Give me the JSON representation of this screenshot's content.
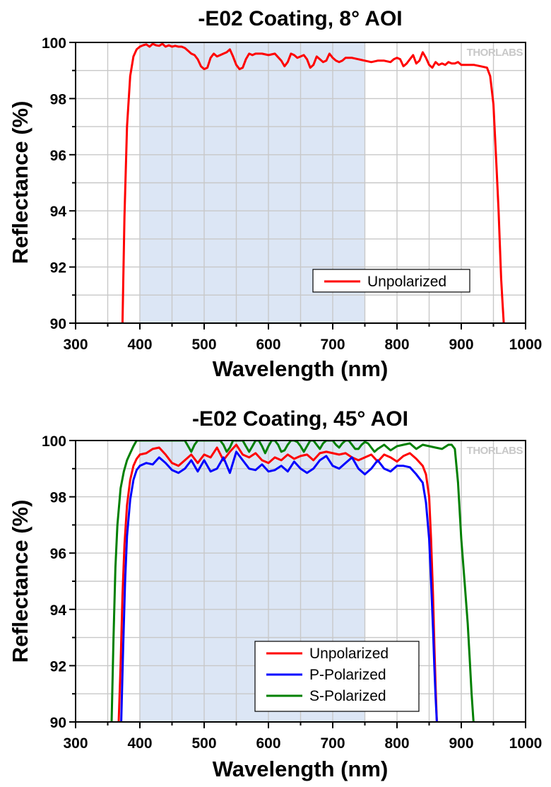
{
  "chart_data": [
    {
      "type": "line",
      "title": "-E02 Coating, 8° AOI",
      "xlabel": "Wavelength (nm)",
      "ylabel": "Reflectance (%)",
      "xlim": [
        300,
        1000
      ],
      "ylim": [
        90,
        100
      ],
      "xticks": [
        300,
        400,
        500,
        600,
        700,
        800,
        900,
        1000
      ],
      "yticks": [
        90,
        92,
        94,
        96,
        98,
        100
      ],
      "grid": true,
      "shaded_band": [
        400,
        750
      ],
      "watermark": "THORLABS",
      "legend_position": "bottom-right",
      "series": [
        {
          "name": "Unpolarized",
          "color": "#ff0000",
          "x": [
            373,
            376,
            380,
            385,
            390,
            395,
            400,
            405,
            410,
            415,
            420,
            425,
            430,
            435,
            440,
            445,
            450,
            455,
            460,
            465,
            470,
            475,
            480,
            485,
            490,
            495,
            500,
            505,
            510,
            515,
            520,
            525,
            530,
            535,
            540,
            545,
            550,
            555,
            560,
            565,
            570,
            575,
            580,
            585,
            590,
            600,
            610,
            620,
            625,
            630,
            635,
            640,
            645,
            650,
            655,
            660,
            665,
            670,
            675,
            680,
            685,
            690,
            695,
            700,
            705,
            710,
            715,
            720,
            730,
            740,
            750,
            760,
            770,
            780,
            790,
            795,
            800,
            805,
            810,
            815,
            820,
            825,
            830,
            835,
            840,
            845,
            850,
            855,
            860,
            865,
            870,
            875,
            880,
            885,
            890,
            895,
            900,
            910,
            920,
            930,
            940,
            945,
            950,
            955,
            958,
            960,
            962,
            964,
            966
          ],
          "y": [
            90,
            93.8,
            97.0,
            98.8,
            99.5,
            99.75,
            99.85,
            99.9,
            99.93,
            99.85,
            99.95,
            99.9,
            99.88,
            99.95,
            99.85,
            99.9,
            99.85,
            99.88,
            99.85,
            99.85,
            99.8,
            99.7,
            99.6,
            99.55,
            99.4,
            99.15,
            99.05,
            99.1,
            99.45,
            99.6,
            99.5,
            99.55,
            99.6,
            99.65,
            99.75,
            99.5,
            99.2,
            99.05,
            99.1,
            99.4,
            99.6,
            99.55,
            99.6,
            99.6,
            99.6,
            99.55,
            99.6,
            99.35,
            99.15,
            99.3,
            99.6,
            99.55,
            99.45,
            99.5,
            99.55,
            99.4,
            99.1,
            99.2,
            99.5,
            99.4,
            99.3,
            99.35,
            99.6,
            99.45,
            99.35,
            99.3,
            99.35,
            99.45,
            99.45,
            99.4,
            99.35,
            99.3,
            99.35,
            99.35,
            99.3,
            99.4,
            99.45,
            99.4,
            99.15,
            99.25,
            99.4,
            99.55,
            99.25,
            99.35,
            99.65,
            99.45,
            99.2,
            99.1,
            99.3,
            99.2,
            99.25,
            99.2,
            99.3,
            99.25,
            99.25,
            99.3,
            99.2,
            99.2,
            99.2,
            99.15,
            99.1,
            98.8,
            97.8,
            95.5,
            94.0,
            92.8,
            91.6,
            90.8,
            90
          ]
        }
      ]
    },
    {
      "type": "line",
      "title": "-E02 Coating, 45° AOI",
      "xlabel": "Wavelength (nm)",
      "ylabel": "Reflectance (%)",
      "xlim": [
        300,
        1000
      ],
      "ylim": [
        90,
        100
      ],
      "xticks": [
        300,
        400,
        500,
        600,
        700,
        800,
        900,
        1000
      ],
      "yticks": [
        90,
        92,
        94,
        96,
        98,
        100
      ],
      "grid": true,
      "shaded_band": [
        400,
        750
      ],
      "watermark": "THORLABS",
      "legend_position": "bottom-center",
      "series": [
        {
          "name": "Unpolarized",
          "color": "#ff0000",
          "x": [
            367,
            370,
            373,
            376,
            380,
            385,
            390,
            395,
            400,
            410,
            420,
            430,
            440,
            450,
            460,
            470,
            480,
            490,
            500,
            510,
            520,
            530,
            540,
            550,
            560,
            570,
            580,
            590,
            600,
            610,
            620,
            630,
            640,
            650,
            660,
            670,
            680,
            690,
            700,
            710,
            720,
            730,
            740,
            750,
            760,
            770,
            780,
            790,
            800,
            810,
            820,
            830,
            840,
            845,
            850,
            853,
            856,
            858,
            860,
            862
          ],
          "y": [
            90,
            92.0,
            94.5,
            96.3,
            97.7,
            98.6,
            99.1,
            99.35,
            99.5,
            99.55,
            99.7,
            99.75,
            99.5,
            99.2,
            99.1,
            99.3,
            99.5,
            99.2,
            99.5,
            99.4,
            99.75,
            99.3,
            99.6,
            99.85,
            99.5,
            99.4,
            99.55,
            99.3,
            99.2,
            99.4,
            99.3,
            99.5,
            99.35,
            99.45,
            99.5,
            99.3,
            99.55,
            99.6,
            99.55,
            99.5,
            99.55,
            99.4,
            99.3,
            99.4,
            99.5,
            99.25,
            99.5,
            99.4,
            99.25,
            99.45,
            99.55,
            99.35,
            99.1,
            98.8,
            98.0,
            96.5,
            94.5,
            92.8,
            91.3,
            90
          ]
        },
        {
          "name": "P-Polarized",
          "color": "#0000ff",
          "x": [
            371,
            374,
            377,
            380,
            385,
            390,
            395,
            400,
            410,
            420,
            430,
            440,
            450,
            460,
            470,
            480,
            490,
            500,
            510,
            520,
            530,
            540,
            550,
            560,
            570,
            580,
            590,
            600,
            610,
            620,
            630,
            640,
            650,
            660,
            670,
            680,
            690,
            700,
            710,
            720,
            730,
            740,
            750,
            760,
            770,
            780,
            790,
            800,
            810,
            820,
            830,
            840,
            845,
            850,
            853,
            856,
            858,
            860,
            862
          ],
          "y": [
            90,
            92.6,
            95.0,
            96.6,
            97.9,
            98.6,
            98.95,
            99.1,
            99.2,
            99.15,
            99.4,
            99.2,
            98.95,
            98.85,
            99.0,
            99.3,
            98.9,
            99.3,
            98.9,
            99.0,
            99.4,
            98.85,
            99.6,
            99.3,
            99.0,
            98.95,
            99.15,
            98.9,
            98.95,
            99.1,
            98.9,
            99.25,
            99.0,
            98.85,
            99.0,
            99.3,
            99.45,
            99.1,
            99.0,
            99.2,
            99.4,
            99.0,
            98.8,
            99.0,
            99.3,
            99.0,
            98.9,
            99.1,
            99.1,
            99.05,
            98.8,
            98.5,
            97.8,
            96.5,
            95.0,
            93.3,
            92.0,
            90.9,
            90
          ]
        },
        {
          "name": "S-Polarized",
          "color": "#008000",
          "x": [
            356,
            359,
            362,
            365,
            370,
            375,
            380,
            385,
            390,
            395,
            400,
            410,
            420,
            430,
            440,
            450,
            460,
            470,
            475,
            480,
            485,
            490,
            495,
            500,
            505,
            510,
            515,
            520,
            525,
            530,
            535,
            540,
            545,
            550,
            555,
            560,
            565,
            570,
            575,
            580,
            585,
            590,
            595,
            600,
            605,
            610,
            615,
            620,
            625,
            630,
            635,
            640,
            645,
            650,
            655,
            660,
            665,
            670,
            675,
            680,
            685,
            690,
            695,
            700,
            705,
            710,
            715,
            720,
            725,
            730,
            735,
            740,
            745,
            750,
            755,
            760,
            765,
            770,
            780,
            790,
            800,
            810,
            820,
            830,
            840,
            850,
            860,
            870,
            880,
            885,
            890,
            895,
            900,
            905,
            910,
            913,
            916,
            919
          ],
          "y": [
            90,
            93.0,
            95.5,
            97.0,
            98.3,
            98.9,
            99.3,
            99.55,
            99.8,
            100,
            100,
            100,
            100,
            100,
            100,
            100,
            100,
            100,
            99.8,
            99.6,
            99.85,
            100,
            100,
            100,
            100,
            100,
            100,
            100,
            100,
            99.85,
            99.6,
            99.75,
            100,
            100,
            100,
            100,
            99.8,
            99.6,
            99.8,
            100,
            100,
            99.8,
            99.55,
            99.8,
            100,
            100,
            99.85,
            99.6,
            99.65,
            99.85,
            100,
            100,
            99.95,
            99.8,
            99.6,
            99.8,
            100,
            100,
            99.85,
            99.7,
            99.9,
            100,
            100,
            100,
            99.85,
            99.75,
            99.9,
            100,
            100,
            99.85,
            99.7,
            99.7,
            99.85,
            99.95,
            99.9,
            99.75,
            99.6,
            99.7,
            99.85,
            99.65,
            99.8,
            99.85,
            99.9,
            99.7,
            99.85,
            99.8,
            99.75,
            99.7,
            99.85,
            99.85,
            99.7,
            98.5,
            96.5,
            95.0,
            93.5,
            92.3,
            91.0,
            90
          ]
        }
      ]
    }
  ]
}
